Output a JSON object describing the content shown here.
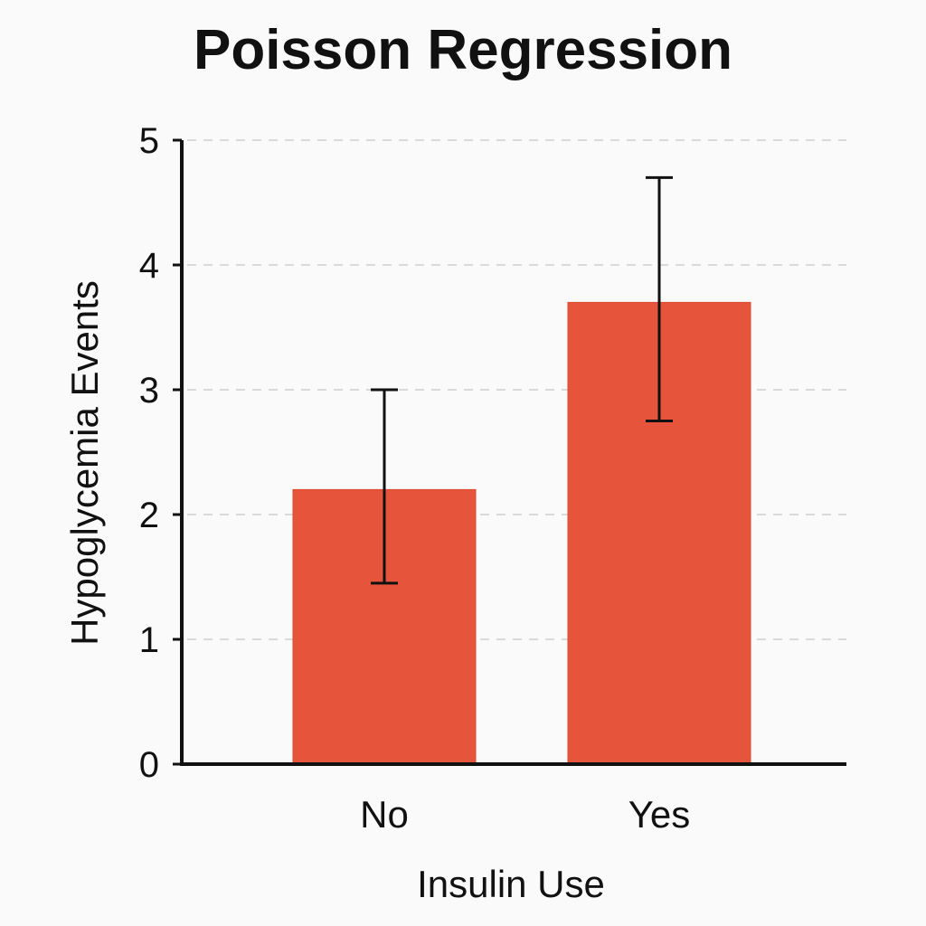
{
  "chart_data": {
    "type": "bar",
    "title": "Poisson Regression",
    "xlabel": "Insulin Use",
    "ylabel": "Hypoglycemia Events",
    "categories": [
      "No",
      "Yes"
    ],
    "values": [
      2.2,
      3.7
    ],
    "error_low": [
      1.45,
      2.75
    ],
    "error_high": [
      3.0,
      4.7
    ],
    "ylim": [
      0,
      5
    ],
    "yticks": [
      0,
      1,
      2,
      3,
      4,
      5
    ],
    "grid": true,
    "colors": {
      "bar": "#e5543b",
      "bar_edge": "#d94a32",
      "error": "#111111",
      "axis": "#111111",
      "grid": "#d9d9d9"
    }
  }
}
